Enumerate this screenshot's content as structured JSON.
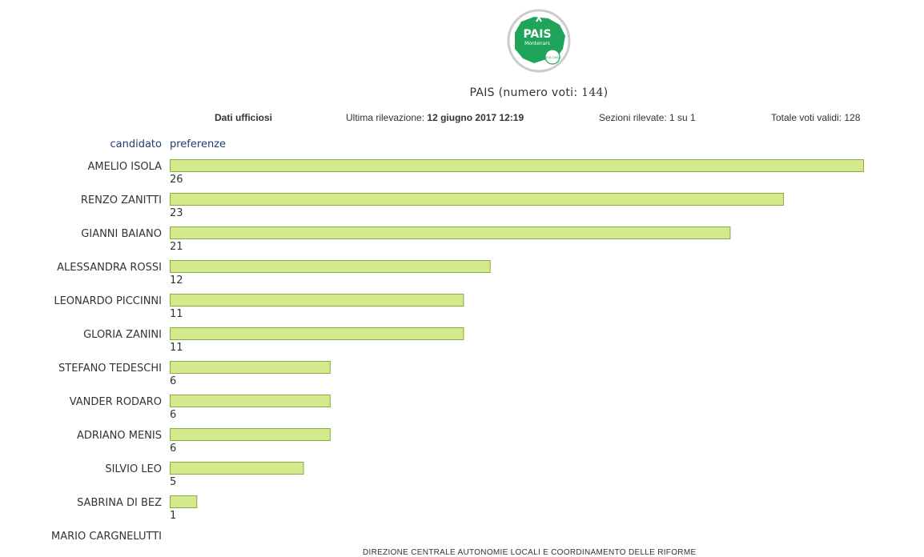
{
  "logo": {
    "brand": "PAIS",
    "sub": "Montenars",
    "badge": "LISTA CIVICA",
    "colors": {
      "green": "#1fa55a",
      "ring": "#cccccc"
    }
  },
  "header": {
    "party": "PAIS",
    "votes_prefix": "(numero voti:",
    "votes": "144",
    "votes_suffix": ")"
  },
  "meta": {
    "status": "Dati ufficiosi",
    "last_label": "Ultima rilevazione:",
    "last_value": "12 giugno 2017 12:19",
    "sections": "Sezioni rilevate: 1 su 1",
    "total_valid": "Totale voti validi: 128"
  },
  "columns": {
    "candidate": "candidato",
    "preferences": "preferenze"
  },
  "footer": "DIREZIONE CENTRALE AUTONOMIE LOCALI E COORDINAMENTO DELLE RIFORME",
  "chart_data": {
    "type": "bar",
    "orientation": "horizontal",
    "categories": [
      "AMELIO ISOLA",
      "RENZO ZANITTI",
      "GIANNI BAIANO",
      "ALESSANDRA ROSSI",
      "LEONARDO PICCINNI",
      "GLORIA ZANINI",
      "STEFANO TEDESCHI",
      "VANDER RODARO",
      "ADRIANO MENIS",
      "SILVIO LEO",
      "SABRINA DI BEZ",
      "MARIO CARGNELUTTI"
    ],
    "values": [
      26,
      23,
      21,
      12,
      11,
      11,
      6,
      6,
      6,
      5,
      1,
      null
    ],
    "xlim": [
      0,
      26
    ],
    "grid": false,
    "colors": {
      "bar": "#d3e98c",
      "bar_border": "#86ad3e"
    }
  }
}
